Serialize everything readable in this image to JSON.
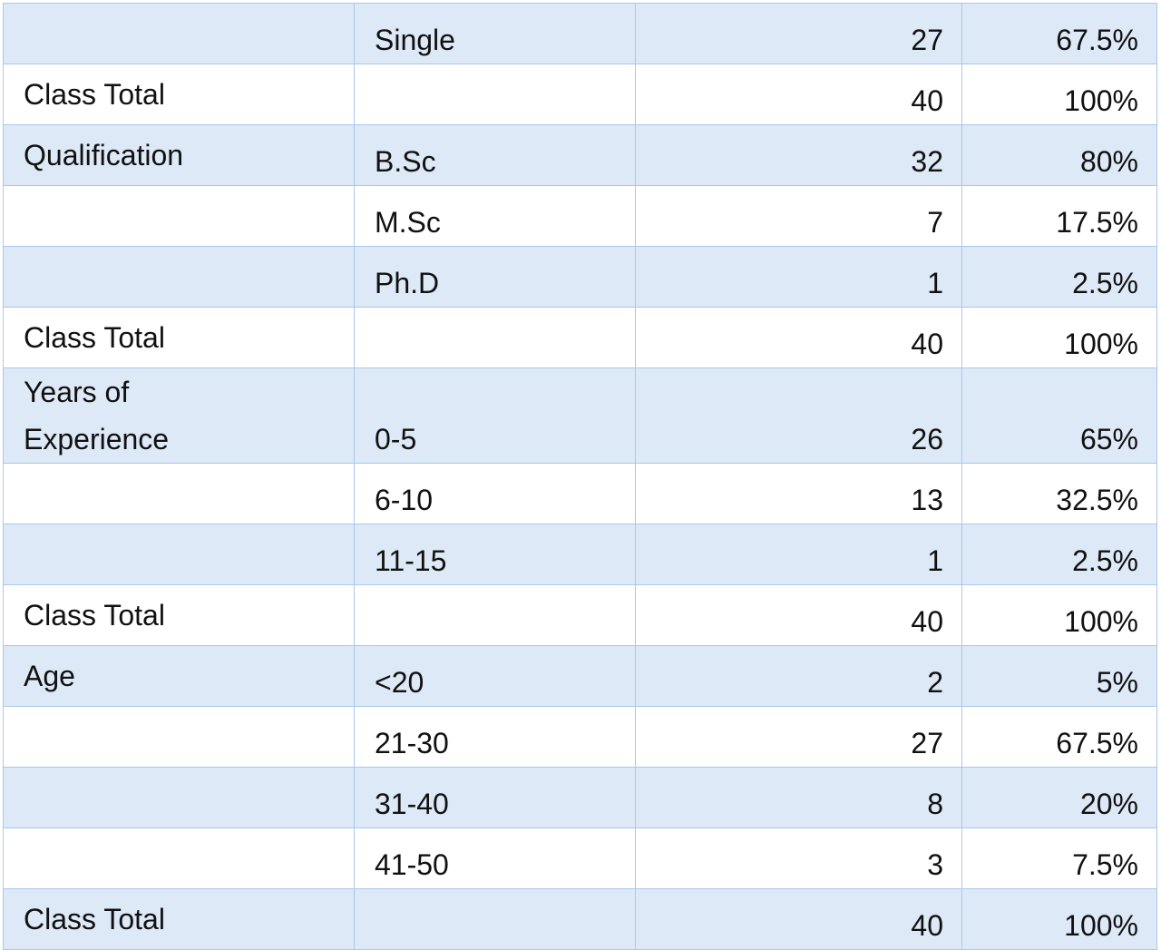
{
  "table": {
    "rows": [
      {
        "item": "Single",
        "count": "27",
        "percent": "67.5%"
      },
      {
        "group": "Class Total",
        "count": "40",
        "percent": "100%"
      },
      {
        "group": "Qualification",
        "item": "B.Sc",
        "count": "32",
        "percent": "80%"
      },
      {
        "item": "M.Sc",
        "count": "7",
        "percent": "17.5%"
      },
      {
        "item": "Ph.D",
        "count": "1",
        "percent": "2.5%"
      },
      {
        "group": "Class Total",
        "count": "40",
        "percent": "100%"
      },
      {
        "group": "Years of Experience",
        "item": "0-5",
        "count": "26",
        "percent": "65%"
      },
      {
        "item": "6-10",
        "count": "13",
        "percent": "32.5%"
      },
      {
        "item": "11-15",
        "count": "1",
        "percent": "2.5%"
      },
      {
        "group": "Class Total",
        "count": "40",
        "percent": "100%"
      },
      {
        "group": "Age",
        "item": "<20",
        "count": "2",
        "percent": "5%"
      },
      {
        "item": "21-30",
        "count": "27",
        "percent": "67.5%"
      },
      {
        "item": "31-40",
        "count": "8",
        "percent": "20%"
      },
      {
        "item": "41-50",
        "count": "3",
        "percent": "7.5%"
      },
      {
        "group": "Class Total",
        "count": "40",
        "percent": "100%"
      }
    ]
  }
}
